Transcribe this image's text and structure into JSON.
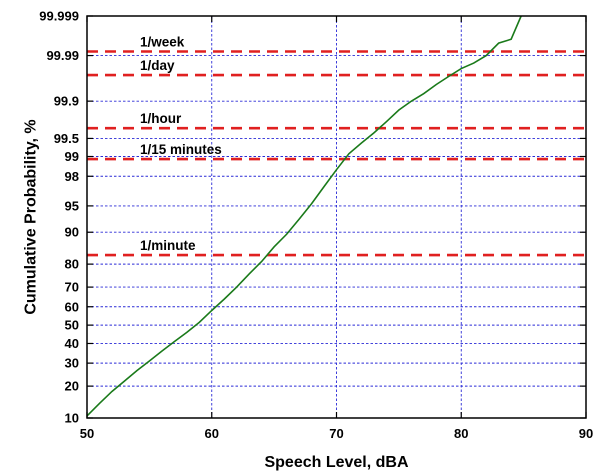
{
  "chart_data": {
    "type": "line",
    "title": "",
    "xlabel": "Speech Level, dBA",
    "ylabel": "Cumulative Probability, %",
    "x_scale": "linear",
    "y_scale": "normal-probability",
    "xlim": [
      50,
      90
    ],
    "ylim": [
      10,
      99.999
    ],
    "grid": true,
    "x_ticks": [
      50,
      60,
      70,
      80,
      90
    ],
    "x_tick_labels": [
      "50",
      "60",
      "70",
      "80",
      "90"
    ],
    "y_ticks": [
      10,
      20,
      30,
      40,
      50,
      60,
      70,
      80,
      90,
      95,
      98,
      99,
      99.5,
      99.9,
      99.99,
      99.999
    ],
    "y_tick_labels": [
      "10",
      "20",
      "30",
      "40",
      "50",
      "60",
      "70",
      "80",
      "90",
      "95",
      "98",
      "99",
      "99.5",
      "99.9",
      "99.99",
      "99.999"
    ],
    "series": [
      {
        "color": "#1a7a1a",
        "points": [
          [
            50.0,
            10.5
          ],
          [
            51.0,
            14
          ],
          [
            52.0,
            18
          ],
          [
            53.0,
            22
          ],
          [
            54.0,
            26.5
          ],
          [
            55.0,
            31
          ],
          [
            56.0,
            36
          ],
          [
            57.0,
            41
          ],
          [
            58.0,
            46
          ],
          [
            59.0,
            51.5
          ],
          [
            60.0,
            58
          ],
          [
            61.0,
            64
          ],
          [
            62.0,
            70
          ],
          [
            63.0,
            76
          ],
          [
            64.0,
            81
          ],
          [
            65.0,
            86
          ],
          [
            66.0,
            89.5
          ],
          [
            67.0,
            92.8
          ],
          [
            68.0,
            95.3
          ],
          [
            69.0,
            97.2
          ],
          [
            70.0,
            98.4
          ],
          [
            71.0,
            99.1
          ],
          [
            72.0,
            99.4
          ],
          [
            73.0,
            99.6
          ],
          [
            74.0,
            99.75
          ],
          [
            75.0,
            99.85
          ],
          [
            76.0,
            99.9
          ],
          [
            77.0,
            99.93
          ],
          [
            78.0,
            99.955
          ],
          [
            79.0,
            99.97
          ],
          [
            80.0,
            99.98
          ],
          [
            81.0,
            99.985
          ],
          [
            82.0,
            99.99
          ],
          [
            83.0,
            99.995
          ],
          [
            84.0,
            99.996
          ],
          [
            84.8,
            99.999
          ]
        ]
      }
    ],
    "reference_lines": [
      {
        "label": "1/week",
        "y": 99.992,
        "color": "#e02020"
      },
      {
        "label": "1/day",
        "y": 99.972,
        "color": "#e02020"
      },
      {
        "label": "1/hour",
        "y": 99.67,
        "color": "#e02020"
      },
      {
        "label": "1/15 minutes",
        "y": 98.9,
        "color": "#e02020"
      },
      {
        "label": "1/minute",
        "y": 83.3,
        "color": "#e02020"
      }
    ]
  }
}
